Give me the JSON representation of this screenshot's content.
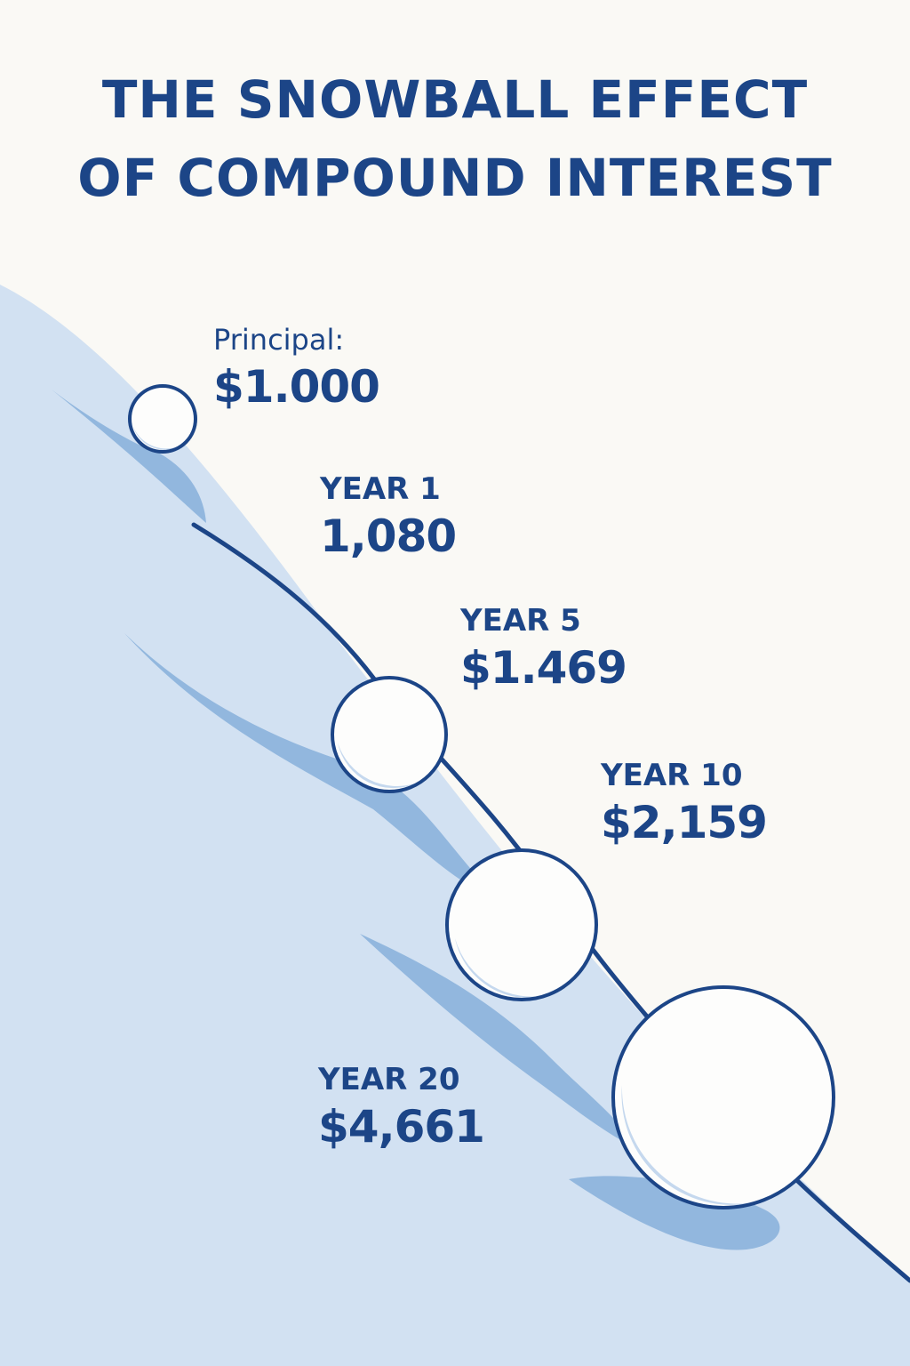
{
  "title": {
    "line1": "THE SNOWBALL EFFECT",
    "line2": "OF COMPOUND INTEREST"
  },
  "colors": {
    "background": "#faf9f5",
    "slope": "#d2e1f2",
    "shadow": "#92b7de",
    "stroke": "#1c4587",
    "snowball_fill": "#fdfdfc",
    "snowball_shade": "#c5d8ee",
    "text": "#1c4587"
  },
  "stages": [
    {
      "caption": "Principal:",
      "value": "$1.000"
    },
    {
      "caption": "YEAR 1",
      "value": "1,080"
    },
    {
      "caption": "YEAR 5",
      "value": "$1.469"
    },
    {
      "caption": "YEAR 10",
      "value": "$2,159"
    },
    {
      "caption": "YEAR 20",
      "value": "$4,661"
    }
  ],
  "snowballs": [
    {
      "stage": "Principal:",
      "icon": "snowball-icon"
    },
    {
      "stage": "YEAR 5",
      "icon": "snowball-icon"
    },
    {
      "stage": "YEAR 10",
      "icon": "snowball-icon"
    },
    {
      "stage": "YEAR 20",
      "icon": "snowball-icon"
    }
  ]
}
